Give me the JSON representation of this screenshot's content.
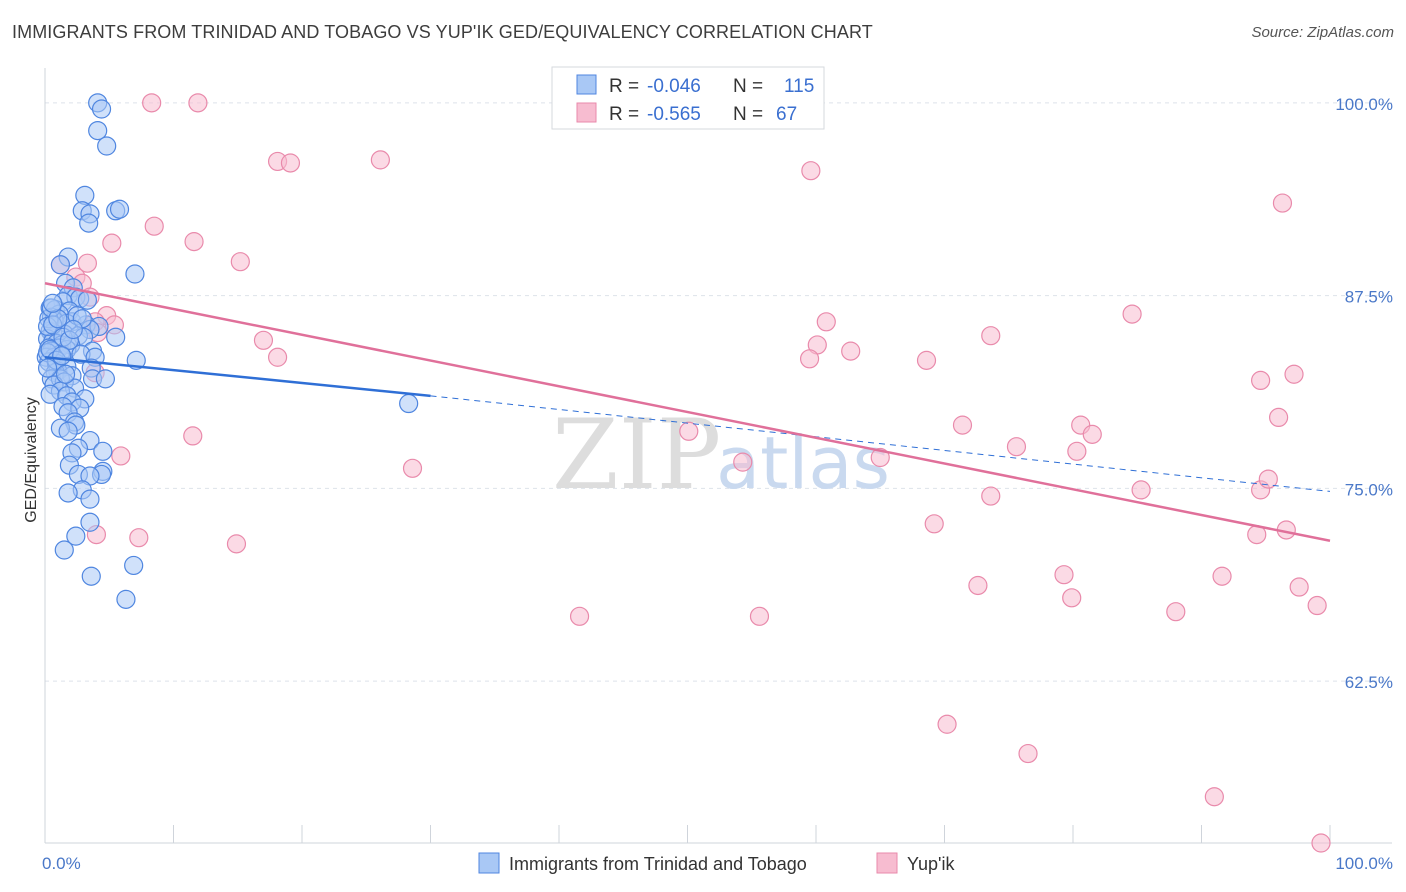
{
  "title": "IMMIGRANTS FROM TRINIDAD AND TOBAGO VS YUP'IK GED/EQUIVALENCY CORRELATION CHART",
  "source": "Source: ZipAtlas.com",
  "watermark": {
    "zip": "ZIP",
    "atlas": "atlas"
  },
  "colors": {
    "blue_fill": "#a9c8f5",
    "blue_stroke": "#4f86e0",
    "blue_line": "#2f6fd6",
    "pink_fill": "#f7bcd0",
    "pink_stroke": "#e98aab",
    "pink_line": "#e0709a",
    "grid": "#dde2ea",
    "axis_label": "#4a78c8"
  },
  "legend": {
    "rows": [
      {
        "r_label": "R =",
        "r_value": "-0.046",
        "n_label": "N =",
        "n_value": "115"
      },
      {
        "r_label": "R =",
        "r_value": "-0.565",
        "n_label": "N =",
        "n_value": "67"
      }
    ]
  },
  "chart_data": {
    "type": "scatter",
    "xlabel": "",
    "ylabel": "GED/Equivalency",
    "xlim": [
      0,
      100
    ],
    "ylim": [
      52,
      102
    ],
    "x_tick_labels": [
      "0.0%",
      "100.0%"
    ],
    "y_ticks": [
      62.5,
      75.0,
      87.5,
      100.0
    ],
    "y_tick_labels": [
      "62.5%",
      "75.0%",
      "87.5%",
      "100.0%"
    ],
    "grid": true,
    "legend_position": "top-center",
    "series": [
      {
        "name": "Immigrants from Trinidad and Tobago",
        "trend": {
          "x0": 0,
          "y0": 83.5,
          "x1": 30,
          "y1": 81.0,
          "dashed_to_x": 100,
          "dashed_to_y": 74.8
        },
        "points": [
          [
            4.1,
            100
          ],
          [
            4.1,
            98.2
          ],
          [
            4.4,
            99.6
          ],
          [
            4.8,
            97.2
          ],
          [
            3.1,
            94.0
          ],
          [
            2.9,
            93.0
          ],
          [
            3.5,
            92.8
          ],
          [
            3.4,
            92.2
          ],
          [
            5.5,
            93.0
          ],
          [
            5.8,
            93.1
          ],
          [
            1.8,
            90.0
          ],
          [
            1.2,
            89.5
          ],
          [
            7.0,
            88.9
          ],
          [
            1.6,
            88.3
          ],
          [
            2.2,
            88.0
          ],
          [
            1.8,
            87.5
          ],
          [
            2.4,
            87.4
          ],
          [
            2.7,
            87.3
          ],
          [
            1.4,
            87.1
          ],
          [
            0.4,
            86.7
          ],
          [
            0.8,
            86.6
          ],
          [
            1.9,
            86.5
          ],
          [
            1.1,
            86.3
          ],
          [
            0.5,
            86.1
          ],
          [
            0.7,
            85.9
          ],
          [
            2.1,
            85.8
          ],
          [
            1.7,
            85.7
          ],
          [
            3.2,
            85.6
          ],
          [
            4.2,
            85.5
          ],
          [
            3.5,
            85.3
          ],
          [
            0.4,
            85.2
          ],
          [
            0.6,
            85.1
          ],
          [
            1.5,
            85.0
          ],
          [
            2.6,
            84.9
          ],
          [
            3.0,
            84.8
          ],
          [
            5.5,
            84.8
          ],
          [
            0.2,
            84.7
          ],
          [
            0.6,
            84.5
          ],
          [
            0.9,
            84.4
          ],
          [
            1.3,
            84.3
          ],
          [
            2.0,
            84.3
          ],
          [
            0.3,
            84.1
          ],
          [
            1.1,
            84.1
          ],
          [
            1.7,
            84.0
          ],
          [
            3.7,
            83.9
          ],
          [
            0.5,
            83.9
          ],
          [
            1.2,
            83.7
          ],
          [
            2.8,
            83.7
          ],
          [
            0.1,
            83.5
          ],
          [
            0.7,
            83.5
          ],
          [
            3.9,
            83.5
          ],
          [
            7.1,
            83.3
          ],
          [
            0.3,
            83.2
          ],
          [
            0.9,
            83.1
          ],
          [
            1.7,
            82.9
          ],
          [
            3.6,
            82.8
          ],
          [
            1.0,
            82.6
          ],
          [
            0.8,
            82.5
          ],
          [
            2.1,
            82.3
          ],
          [
            0.5,
            82.1
          ],
          [
            1.2,
            82.1
          ],
          [
            3.7,
            82.1
          ],
          [
            4.7,
            82.1
          ],
          [
            1.5,
            81.9
          ],
          [
            0.7,
            81.7
          ],
          [
            2.3,
            81.5
          ],
          [
            1.2,
            81.3
          ],
          [
            0.4,
            81.1
          ],
          [
            1.7,
            81.0
          ],
          [
            3.1,
            80.8
          ],
          [
            2.1,
            80.6
          ],
          [
            1.4,
            80.3
          ],
          [
            2.7,
            80.2
          ],
          [
            1.8,
            79.9
          ],
          [
            2.3,
            79.3
          ],
          [
            2.4,
            79.1
          ],
          [
            1.2,
            78.9
          ],
          [
            1.8,
            78.7
          ],
          [
            3.5,
            78.1
          ],
          [
            2.6,
            77.6
          ],
          [
            4.5,
            77.4
          ],
          [
            2.1,
            77.3
          ],
          [
            1.9,
            76.5
          ],
          [
            4.5,
            76.1
          ],
          [
            4.4,
            75.9
          ],
          [
            2.6,
            75.9
          ],
          [
            3.5,
            75.8
          ],
          [
            2.9,
            74.9
          ],
          [
            1.8,
            74.7
          ],
          [
            3.5,
            74.3
          ],
          [
            3.5,
            72.8
          ],
          [
            2.4,
            71.9
          ],
          [
            1.5,
            71.0
          ],
          [
            3.6,
            69.3
          ],
          [
            6.9,
            70.0
          ],
          [
            6.3,
            67.8
          ],
          [
            28.3,
            80.5
          ],
          [
            0.2,
            83.8
          ],
          [
            0.3,
            86.0
          ],
          [
            0.5,
            86.7
          ],
          [
            0.2,
            85.5
          ],
          [
            0.4,
            84.0
          ],
          [
            0.9,
            83.3
          ],
          [
            0.6,
            85.6
          ],
          [
            1.0,
            86.0
          ],
          [
            1.4,
            84.8
          ],
          [
            2.5,
            86.2
          ],
          [
            1.6,
            82.4
          ],
          [
            0.2,
            82.8
          ],
          [
            2.9,
            86.0
          ],
          [
            1.9,
            84.6
          ],
          [
            3.3,
            87.2
          ],
          [
            0.6,
            87.0
          ],
          [
            2.2,
            85.3
          ],
          [
            1.3,
            83.6
          ]
        ]
      },
      {
        "name": "Yup'ik",
        "trend": {
          "x0": 0,
          "y0": 88.3,
          "x1": 100,
          "y1": 71.6
        },
        "points": [
          [
            8.3,
            100
          ],
          [
            11.9,
            100
          ],
          [
            18.1,
            96.2
          ],
          [
            19.1,
            96.1
          ],
          [
            26.1,
            96.3
          ],
          [
            59.6,
            95.6
          ],
          [
            96.3,
            93.5
          ],
          [
            8.5,
            92.0
          ],
          [
            11.6,
            91.0
          ],
          [
            5.2,
            90.9
          ],
          [
            1.2,
            89.5
          ],
          [
            3.3,
            89.6
          ],
          [
            15.2,
            89.7
          ],
          [
            2.4,
            88.7
          ],
          [
            2.9,
            88.3
          ],
          [
            3.5,
            87.4
          ],
          [
            4.8,
            86.2
          ],
          [
            3.9,
            85.8
          ],
          [
            5.4,
            85.6
          ],
          [
            4.1,
            85.1
          ],
          [
            60.8,
            85.8
          ],
          [
            73.6,
            84.9
          ],
          [
            84.6,
            86.3
          ],
          [
            17.0,
            84.6
          ],
          [
            60.1,
            84.3
          ],
          [
            18.1,
            83.5
          ],
          [
            62.7,
            83.9
          ],
          [
            59.5,
            83.4
          ],
          [
            68.6,
            83.3
          ],
          [
            3.9,
            82.5
          ],
          [
            94.6,
            82.0
          ],
          [
            97.2,
            82.4
          ],
          [
            11.5,
            78.4
          ],
          [
            50.1,
            78.7
          ],
          [
            71.4,
            79.1
          ],
          [
            75.6,
            77.7
          ],
          [
            80.6,
            79.1
          ],
          [
            81.5,
            78.5
          ],
          [
            96.0,
            79.6
          ],
          [
            80.3,
            77.4
          ],
          [
            5.9,
            77.1
          ],
          [
            28.6,
            76.3
          ],
          [
            54.3,
            76.7
          ],
          [
            65.0,
            77.0
          ],
          [
            73.6,
            74.5
          ],
          [
            85.3,
            74.9
          ],
          [
            94.6,
            74.9
          ],
          [
            95.2,
            75.6
          ],
          [
            7.3,
            71.8
          ],
          [
            14.9,
            71.4
          ],
          [
            69.2,
            72.7
          ],
          [
            79.3,
            69.4
          ],
          [
            79.9,
            67.9
          ],
          [
            91.6,
            69.3
          ],
          [
            94.3,
            72.0
          ],
          [
            96.6,
            72.3
          ],
          [
            97.6,
            68.6
          ],
          [
            99.0,
            67.4
          ],
          [
            41.6,
            66.7
          ],
          [
            55.6,
            66.7
          ],
          [
            72.6,
            68.7
          ],
          [
            88.0,
            67.0
          ],
          [
            70.2,
            59.7
          ],
          [
            76.5,
            57.8
          ],
          [
            91.0,
            55.0
          ],
          [
            99.3,
            52.0
          ],
          [
            4.0,
            72.0
          ]
        ]
      }
    ]
  },
  "bottom_legend": [
    "Immigrants from Trinidad and Tobago",
    "Yup'ik"
  ]
}
